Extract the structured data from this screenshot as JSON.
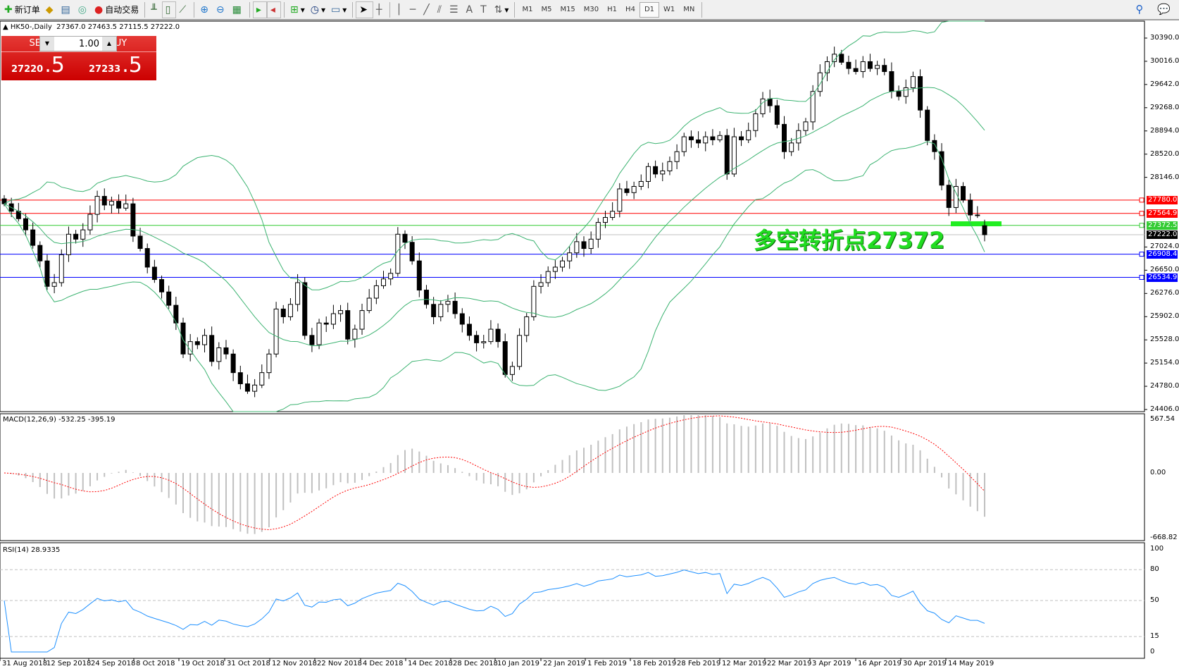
{
  "toolbar": {
    "new_order": "新订单",
    "auto_trading": "自动交易",
    "timeframes": [
      "M1",
      "M5",
      "M15",
      "M30",
      "H1",
      "H4",
      "D1",
      "W1",
      "MN"
    ],
    "active_timeframe": "D1",
    "icons": [
      "new-order-icon",
      "gold-bar-icon",
      "history-center-icon",
      "signal-icon",
      "auto-trading-icon",
      "bar-chart-icon",
      "candlestick-icon",
      "line-chart-icon",
      "zoom-in-icon",
      "zoom-out-icon",
      "tile-windows-icon",
      "chart-shift-icon",
      "autoscroll-icon",
      "indicators-icon",
      "periods-icon",
      "templates-icon",
      "cursor-icon",
      "crosshair-icon",
      "vertical-line-icon",
      "horizontal-line-icon",
      "trendline-icon",
      "equidistant-channel-icon",
      "fibonacci-icon",
      "text-icon",
      "text-label-icon",
      "arrows-icon",
      "search-icon",
      "chat-icon"
    ]
  },
  "symbol": {
    "header": "HK50-,Daily",
    "ohlc": "27367.0 27463.5 27115.5 27222.0"
  },
  "trade_panel": {
    "sell_label": "SELL",
    "buy_label": "BUY",
    "lot": "1.00",
    "sell_price_main": "27220",
    "sell_price_pip": ".5",
    "buy_price_main": "27233",
    "buy_price_pip": ".5",
    "color": "#d32020"
  },
  "annotation": {
    "text": "多空转折点27372",
    "color": "#22dd22"
  },
  "price_axis": [
    "30390.0",
    "30016.0",
    "29642.0",
    "29268.0",
    "28894.0",
    "28520.0",
    "28146.0",
    "27024.0",
    "26650.0",
    "26276.0",
    "25902.0",
    "25528.0",
    "25154.0",
    "24780.0",
    "24406.0"
  ],
  "levels": [
    {
      "price": 27780.0,
      "label": "27780.0",
      "color": "#ff0000"
    },
    {
      "price": 27564.9,
      "label": "27564.9",
      "color": "#ff0000"
    },
    {
      "price": 27372.5,
      "label": "27372.5",
      "color": "#33cc33"
    },
    {
      "price": 27222.0,
      "label": "27222.0",
      "color": "#000000"
    },
    {
      "price": 26908.4,
      "label": "26908.4",
      "color": "#0000ff"
    },
    {
      "price": 26534.9,
      "label": "26534.9",
      "color": "#0000ff"
    }
  ],
  "macd": {
    "label": "MACD(12,26,9) -532.25 -395.19",
    "axis": [
      "567.54",
      "0.00",
      "-668.82"
    ],
    "histogram_color": "#c0c0c0",
    "signal_color": "#ff0000"
  },
  "rsi": {
    "label": "RSI(14) 28.9335",
    "axis": [
      "100",
      "80",
      "50",
      "15",
      "0"
    ],
    "color": "#1e90ff"
  },
  "dates": [
    "31 Aug 2018",
    "12 Sep 2018",
    "24 Sep 2018",
    "8 Oct 2018",
    "19 Oct 2018",
    "31 Oct 2018",
    "12 Nov 2018",
    "22 Nov 2018",
    "4 Dec 2018",
    "14 Dec 2018",
    "28 Dec 2018",
    "10 Jan 2019",
    "22 Jan 2019",
    "1 Feb 2019",
    "18 Feb 2019",
    "28 Feb 2019",
    "12 Mar 2019",
    "22 Mar 2019",
    "3 Apr 2019",
    "16 Apr 2019",
    "30 Apr 2019",
    "14 May 2019"
  ],
  "chart_data": {
    "type": "candlestick",
    "symbol": "HK50-",
    "period": "Daily",
    "ylim": [
      24406,
      30390
    ],
    "bands_color": "#3cb371",
    "last_bar": {
      "open": 27367.0,
      "high": 27463.5,
      "low": 27115.5,
      "close": 27222.0
    },
    "closes": [
      27720,
      27600,
      27480,
      27300,
      27050,
      26800,
      26390,
      26450,
      26900,
      27230,
      27150,
      27300,
      27550,
      27840,
      27700,
      27760,
      27650,
      27720,
      27200,
      27000,
      26700,
      26500,
      26300,
      26085,
      25800,
      25300,
      25500,
      25450,
      25600,
      25180,
      25400,
      25300,
      25000,
      24820,
      24700,
      24800,
      25000,
      25300,
      26025,
      25900,
      26100,
      26450,
      25600,
      25450,
      25800,
      25780,
      25950,
      26000,
      25540,
      25700,
      26000,
      26200,
      26400,
      26510,
      26600,
      27230,
      27100,
      26800,
      26330,
      26100,
      25900,
      26100,
      26150,
      25950,
      25780,
      25600,
      25480,
      25500,
      25700,
      25500,
      24970,
      25100,
      25600,
      25900,
      26390,
      26450,
      26630,
      26700,
      26800,
      26930,
      27110,
      27000,
      27150,
      27420,
      27500,
      27600,
      27960,
      27900,
      28000,
      28080,
      28320,
      28200,
      28250,
      28400,
      28560,
      28800,
      28750,
      28700,
      28800,
      28750,
      28820,
      28200,
      28800,
      28750,
      28900,
      29170,
      29410,
      29300,
      29000,
      28560,
      28700,
      28900,
      29040,
      29530,
      29830,
      30010,
      30130,
      30000,
      29900,
      29850,
      30010,
      29900,
      29950,
      29850,
      29530,
      29450,
      29590,
      29770,
      29230,
      28740,
      28560,
      28020,
      27660,
      28000,
      27780,
      27540,
      27540,
      27222
    ]
  }
}
